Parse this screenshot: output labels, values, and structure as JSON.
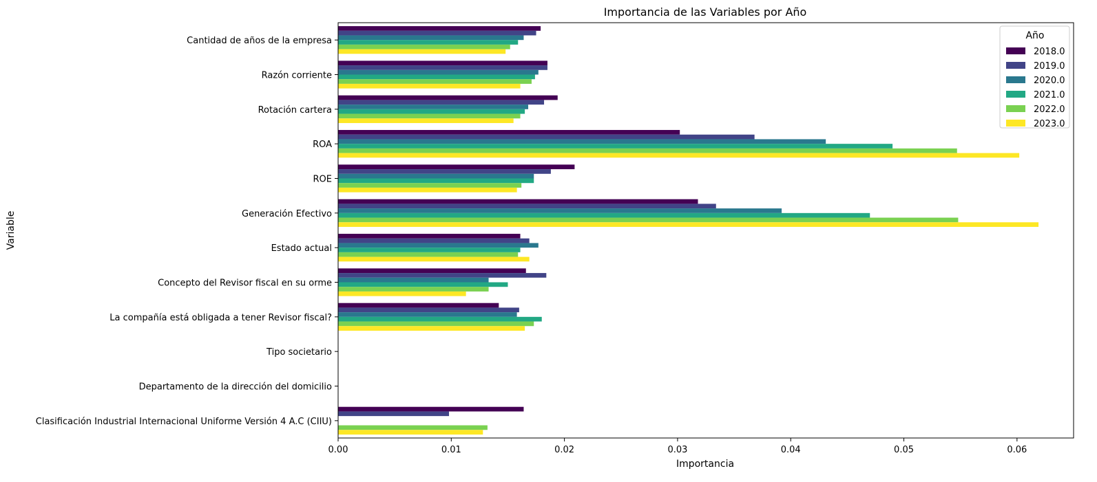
{
  "chart_data": {
    "type": "bar",
    "orientation": "horizontal",
    "title": "Importancia de las Variables por Año",
    "xlabel": "Importancia",
    "ylabel": "Variable",
    "xlim": [
      0,
      0.065
    ],
    "xticks": [
      "0.00",
      "0.01",
      "0.02",
      "0.03",
      "0.04",
      "0.05",
      "0.06"
    ],
    "tick_values": [
      0,
      0.01,
      0.02,
      0.03,
      0.04,
      0.05,
      0.06
    ],
    "grid": false,
    "legend": {
      "title": "Año",
      "placement": "top-right"
    },
    "categories": [
      "Cantidad de años de la empresa",
      "Razón corriente",
      "Rotación cartera",
      "ROA",
      "ROE",
      "Generación Efectivo",
      "Estado actual",
      "Concepto del Revisor fiscal en su orme",
      "La compañía está obligada a tener Revisor fiscal?",
      "Tipo societario",
      "Departamento de la dirección del domicilio",
      "Clasificación Industrial Internacional Uniforme Versión 4 A.C (CIIU)"
    ],
    "series": [
      {
        "name": "2018.0",
        "color": "#440154",
        "values": [
          0.0179,
          0.0185,
          0.0194,
          0.0302,
          0.0209,
          0.0318,
          0.0161,
          0.0166,
          0.0142,
          0,
          0,
          0.0164
        ]
      },
      {
        "name": "2019.0",
        "color": "#414487",
        "values": [
          0.0175,
          0.0185,
          0.0182,
          0.0368,
          0.0188,
          0.0334,
          0.0169,
          0.0184,
          0.016,
          0,
          0,
          0.0098
        ]
      },
      {
        "name": "2020.0",
        "color": "#2a788e",
        "values": [
          0.0164,
          0.0177,
          0.0168,
          0.0431,
          0.0173,
          0.0392,
          0.0177,
          0.0133,
          0.0158,
          0,
          0,
          0
        ]
      },
      {
        "name": "2021.0",
        "color": "#22a884",
        "values": [
          0.0159,
          0.0174,
          0.0165,
          0.049,
          0.0173,
          0.047,
          0.0161,
          0.015,
          0.018,
          0,
          0,
          0
        ]
      },
      {
        "name": "2022.0",
        "color": "#7ad151",
        "values": [
          0.0152,
          0.0171,
          0.0161,
          0.0547,
          0.0162,
          0.0548,
          0.0159,
          0.0133,
          0.0173,
          0,
          0,
          0.0132
        ]
      },
      {
        "name": "2023.0",
        "color": "#fde725",
        "values": [
          0.0148,
          0.0161,
          0.0155,
          0.0602,
          0.0158,
          0.0619,
          0.0169,
          0.0113,
          0.0165,
          0,
          0,
          0.0128
        ]
      }
    ]
  }
}
